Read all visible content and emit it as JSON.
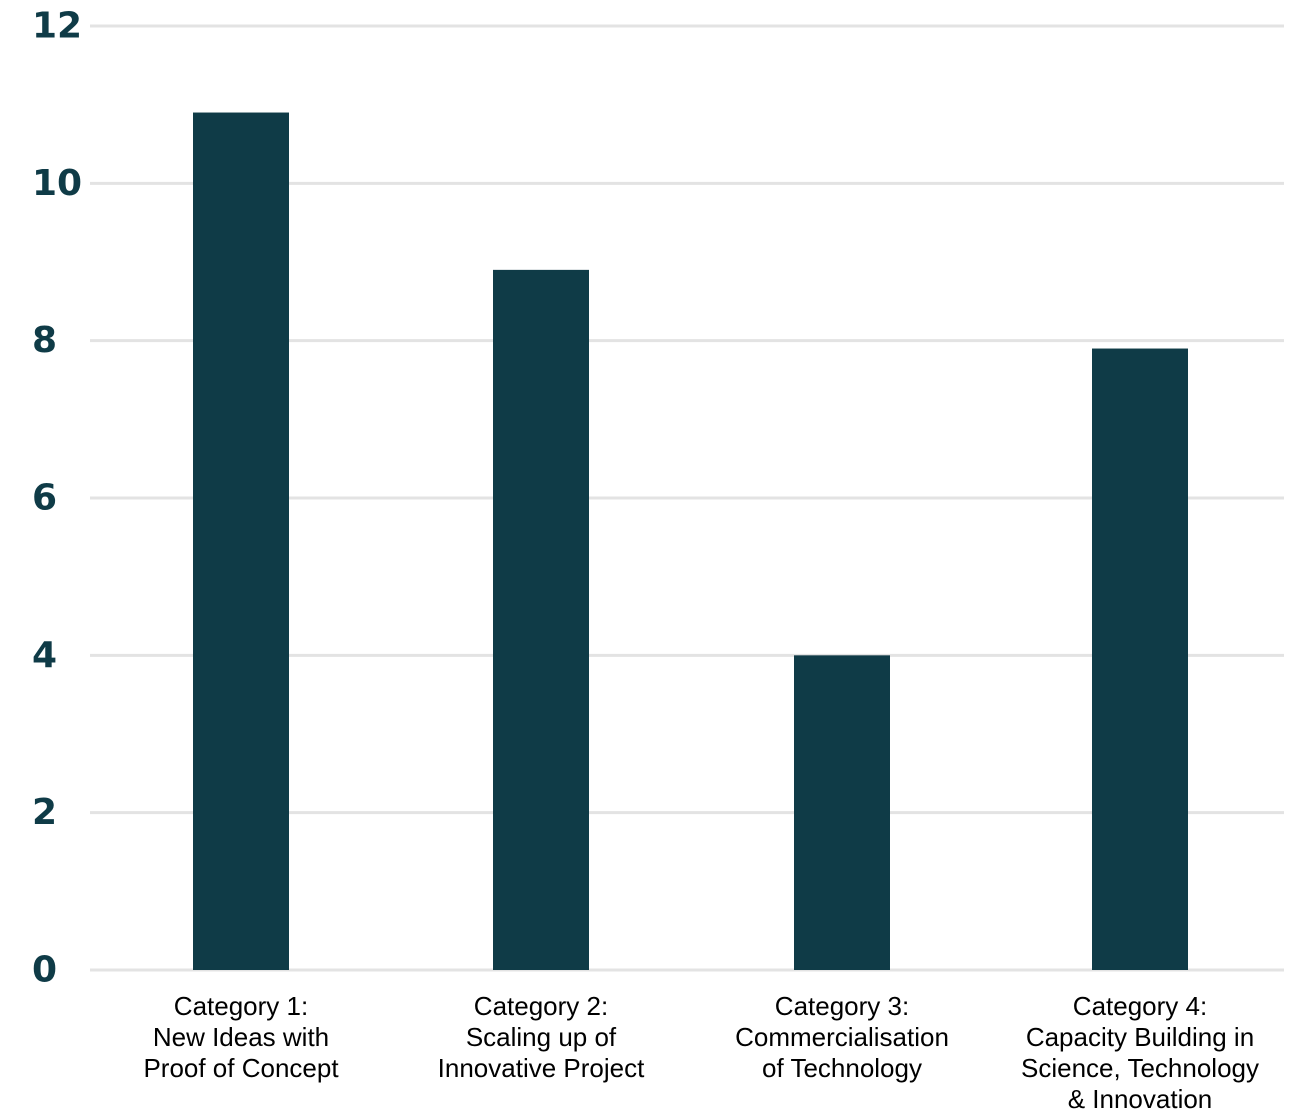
{
  "chart_data": {
    "type": "bar",
    "categories": [
      [
        "Category 1:",
        "New Ideas with",
        "Proof of Concept"
      ],
      [
        "Category 2:",
        "Scaling up of",
        "Innovative Project"
      ],
      [
        "Category 3:",
        "Commercialisation",
        "of Technology"
      ],
      [
        "Category 4:",
        "Capacity Building in",
        "Science, Technology",
        "& Innovation"
      ]
    ],
    "values": [
      10.9,
      8.9,
      4.0,
      7.9
    ],
    "ylim": [
      0,
      12
    ],
    "yticks": [
      0,
      2,
      4,
      6,
      8,
      10,
      12
    ],
    "grid": true,
    "bar_color": "#0f3b47",
    "title": "",
    "xlabel": "",
    "ylabel": ""
  }
}
